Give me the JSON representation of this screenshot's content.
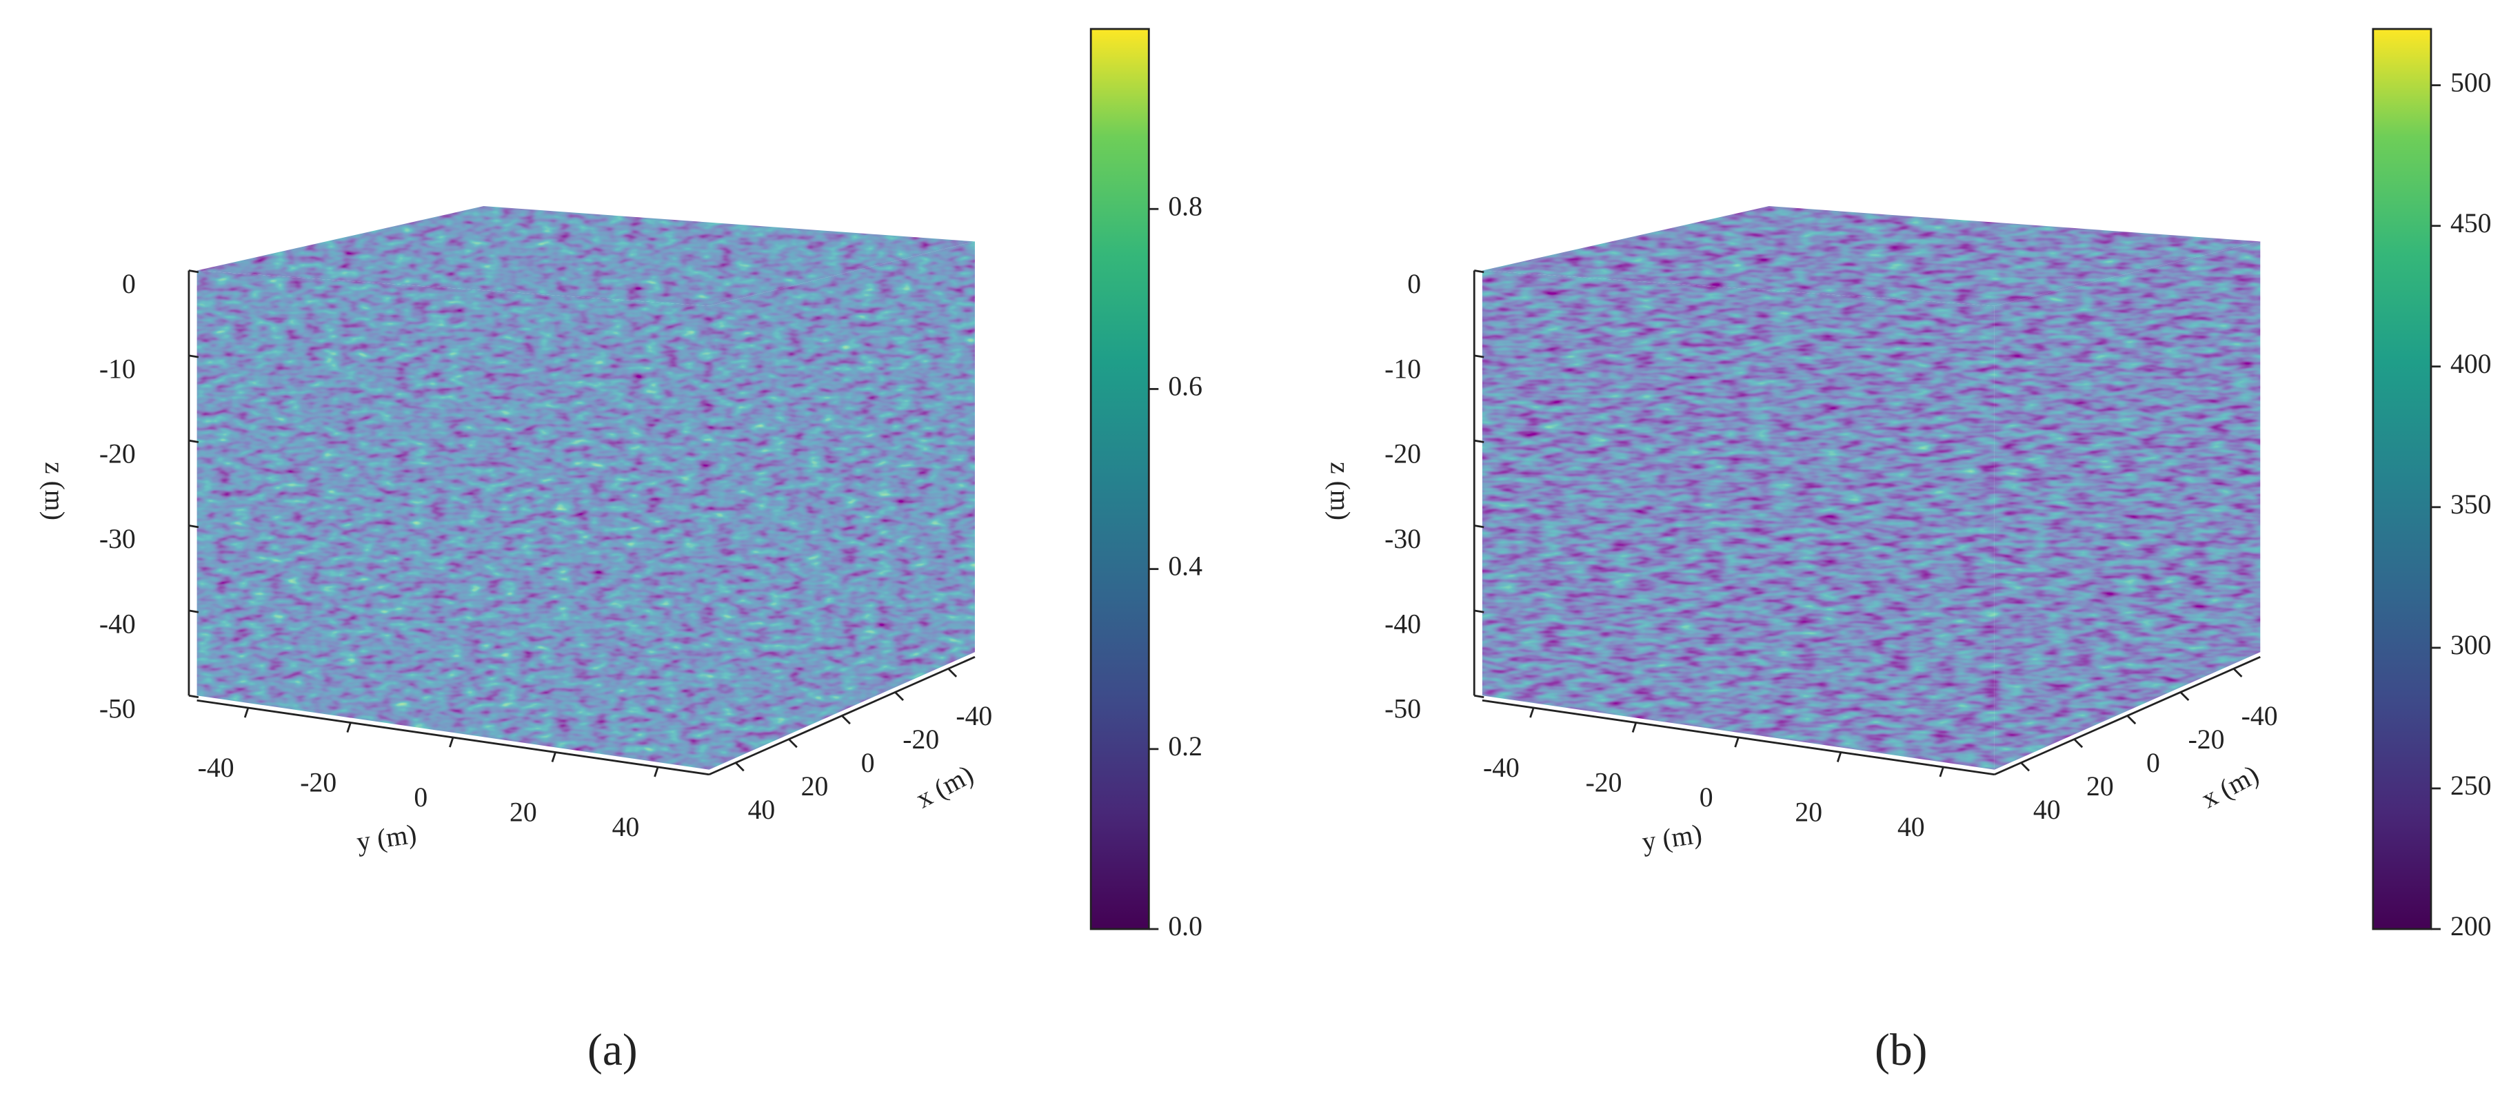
{
  "chart_data": [
    {
      "type": "volume3d",
      "caption": "(a)",
      "xlabel": "x (m)",
      "ylabel": "y (m)",
      "zlabel": "z (m)",
      "xlim": [
        -50,
        50
      ],
      "ylim": [
        -50,
        50
      ],
      "zlim": [
        -50,
        0
      ],
      "xticks": [
        -40,
        -20,
        0,
        20,
        40
      ],
      "yticks": [
        -40,
        -20,
        0,
        20,
        40
      ],
      "zticks": [
        0,
        -10,
        -20,
        -30,
        -40,
        -50
      ],
      "colorbar": {
        "lim": [
          0,
          1
        ],
        "ticks": [
          {
            "value": 0,
            "label": "0.0"
          },
          0.2,
          0.4,
          0.6,
          0.8
        ]
      }
    },
    {
      "type": "volume3d",
      "caption": "(b)",
      "xlabel": "x (m)",
      "ylabel": "y (m)",
      "zlabel": "z (m)",
      "xlim": [
        -50,
        50
      ],
      "ylim": [
        -50,
        50
      ],
      "zlim": [
        -50,
        0
      ],
      "xticks": [
        -40,
        -20,
        0,
        20,
        40
      ],
      "yticks": [
        -40,
        -20,
        0,
        20,
        40
      ],
      "zticks": [
        0,
        -10,
        -20,
        -30,
        -40,
        -50
      ],
      "colorbar": {
        "lim": [
          200,
          520
        ],
        "ticks": [
          200,
          250,
          300,
          350,
          400,
          450,
          500
        ]
      }
    }
  ]
}
